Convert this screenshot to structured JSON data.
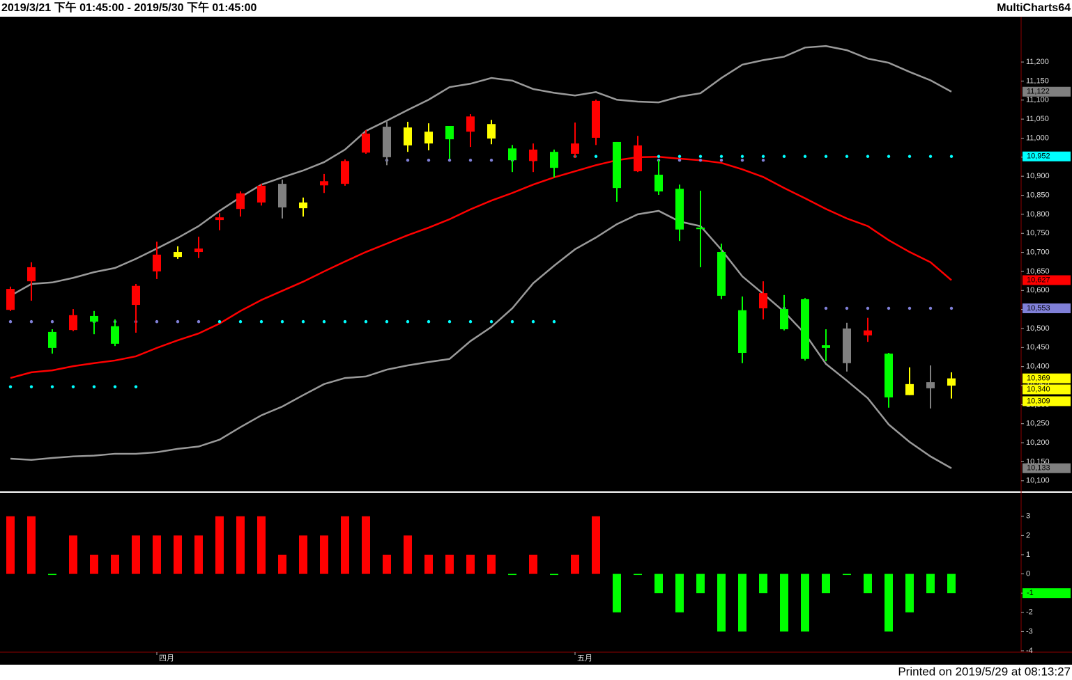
{
  "header": {
    "range": "2019/3/21 下午 01:45:00 - 2019/5/30 下午 01:45:00",
    "app": "MultiCharts64"
  },
  "footer": "Printed on 2019/5/29 at 08:13:27",
  "chart_data": [
    {
      "type": "candlestick",
      "categories": [
        null,
        null,
        null,
        null,
        null,
        null,
        null,
        "四月",
        null,
        null,
        null,
        null,
        null,
        null,
        null,
        null,
        null,
        null,
        null,
        null,
        null,
        null,
        null,
        null,
        null,
        null,
        null,
        "五月",
        null,
        null,
        null,
        null,
        null,
        null,
        null,
        null,
        null,
        null,
        null,
        null,
        null,
        null,
        null,
        null,
        null,
        null
      ],
      "open": [
        10549,
        10624,
        10491,
        10496,
        10533,
        10506,
        10562,
        10650,
        10688,
        10701,
        10785,
        10814,
        10831,
        10818,
        10816,
        10876,
        10880,
        10962,
        10950,
        10981,
        10986,
        11032,
        11017,
        10999,
        10973,
        10940,
        10964,
        10959,
        11001,
        10990,
        10913,
        10904,
        10867,
        10765,
        10701,
        10548,
        10553,
        10551,
        10577,
        10456,
        10409,
        10482,
        10434,
        10325,
        10343,
        10350
      ],
      "high": [
        10610,
        10674,
        10498,
        10551,
        10546,
        10524,
        10617,
        10728,
        10716,
        10741,
        10803,
        10860,
        10880,
        10891,
        10844,
        10906,
        10944,
        11021,
        11046,
        11043,
        11039,
        11032,
        11063,
        11048,
        10982,
        10986,
        10970,
        11041,
        11101,
        10990,
        11006,
        10942,
        10878,
        10862,
        10723,
        10584,
        10624,
        10588,
        10580,
        10498,
        10515,
        10528,
        10436,
        10398,
        10403,
        10385
      ],
      "low": [
        10546,
        10573,
        10434,
        10493,
        10485,
        10454,
        10489,
        10630,
        10683,
        10685,
        10758,
        10794,
        10823,
        10789,
        10794,
        10856,
        10875,
        10959,
        10929,
        10964,
        10968,
        10946,
        10977,
        10984,
        10911,
        10911,
        10897,
        10948,
        10982,
        10833,
        10911,
        10851,
        10730,
        10661,
        10577,
        10409,
        10524,
        10495,
        10416,
        10414,
        10387,
        10465,
        10292,
        10325,
        10290,
        10316
      ],
      "close": [
        10604,
        10661,
        10449,
        10535,
        10518,
        10460,
        10612,
        10694,
        10701,
        10710,
        10792,
        10855,
        10875,
        10880,
        10831,
        10887,
        10940,
        11012,
        11030,
        11028,
        11017,
        10997,
        11057,
        11037,
        10942,
        10970,
        10922,
        10986,
        11098,
        10869,
        10981,
        10860,
        10760,
        10761,
        10586,
        10436,
        10593,
        10498,
        10420,
        10449,
        10500,
        10495,
        10319,
        10354,
        10359,
        10369
      ],
      "colors": [
        "#ff0000",
        "#ff0000",
        "#00ff00",
        "#ff0000",
        "#00ff00",
        "#00ff00",
        "#ff0000",
        "#ff0000",
        "#ffff00",
        "#ff0000",
        "#ff0000",
        "#ff0000",
        "#ff0000",
        "#808080",
        "#ffff00",
        "#ff0000",
        "#ff0000",
        "#ff0000",
        "#808080",
        "#ffff00",
        "#ffff00",
        "#00ff00",
        "#ff0000",
        "#ffff00",
        "#00ff00",
        "#ff0000",
        "#00ff00",
        "#ff0000",
        "#ff0000",
        "#00ff00",
        "#ff0000",
        "#00ff00",
        "#00ff00",
        "#00ff00",
        "#00ff00",
        "#00ff00",
        "#ff0000",
        "#00ff00",
        "#00ff00",
        "#00ff00",
        "#808080",
        "#ff0000",
        "#00ff00",
        "#ffff00",
        "#808080",
        "#ffff00"
      ],
      "lines": [
        {
          "color": "#9a9a9a",
          "values": [
            10586,
            10617,
            10621,
            10633,
            10648,
            10659,
            10683,
            10710,
            10738,
            10769,
            10809,
            10845,
            10878,
            10897,
            10915,
            10937,
            10970,
            11019,
            11046,
            11074,
            11101,
            11134,
            11143,
            11158,
            11151,
            11129,
            11119,
            11112,
            11121,
            11101,
            11096,
            11094,
            11109,
            11118,
            11158,
            11193,
            11205,
            11214,
            11238,
            11242,
            11231,
            11209,
            11198,
            11174,
            11152,
            11122
          ]
        },
        {
          "color": "#ff0000",
          "values": [
            10370,
            10385,
            10390,
            10401,
            10409,
            10416,
            10427,
            10449,
            10469,
            10487,
            10513,
            10546,
            10575,
            10599,
            10623,
            10650,
            10676,
            10701,
            10723,
            10745,
            10765,
            10787,
            10813,
            10836,
            10856,
            10878,
            10897,
            10913,
            10929,
            10942,
            10950,
            10951,
            10946,
            10942,
            10935,
            10918,
            10898,
            10869,
            10842,
            10814,
            10789,
            10769,
            10732,
            10701,
            10674,
            10627
          ]
        },
        {
          "color": "#9a9a9a",
          "values": [
            10158,
            10155,
            10160,
            10164,
            10166,
            10171,
            10171,
            10175,
            10184,
            10190,
            10208,
            10241,
            10272,
            10295,
            10325,
            10354,
            10370,
            10374,
            10392,
            10403,
            10412,
            10420,
            10467,
            10504,
            10553,
            10619,
            10665,
            10708,
            10739,
            10774,
            10800,
            10809,
            10781,
            10769,
            10707,
            10637,
            10591,
            10544,
            10486,
            10407,
            10363,
            10317,
            10248,
            10202,
            10164,
            10133
          ]
        }
      ],
      "dots": [
        {
          "color": "#00ffff",
          "values": [
            10347,
            10347,
            10347,
            10347,
            10347,
            10347,
            10347,
            null,
            null,
            null,
            10518,
            10518,
            10518,
            10518,
            10518,
            10518,
            10518,
            10518,
            10518,
            10518,
            10518,
            10518,
            10518,
            10518,
            10518,
            10518,
            10518,
            10952,
            10952,
            10952,
            10952,
            10952,
            10952,
            10952,
            10952,
            10952,
            10952,
            10952,
            10952,
            10952,
            10952,
            10952,
            10952,
            10952,
            10952,
            10952
          ]
        },
        {
          "color": "#8080d8",
          "values": [
            10518,
            10518,
            10518,
            10518,
            10518,
            10518,
            10518,
            10518,
            10518,
            10518,
            null,
            null,
            null,
            null,
            null,
            null,
            null,
            null,
            10942,
            10942,
            10942,
            10942,
            10942,
            10942,
            10942,
            10942,
            10942,
            null,
            null,
            null,
            10942,
            10942,
            10942,
            10942,
            10942,
            10942,
            10942,
            10553,
            10553,
            10553,
            10553,
            10553,
            10553,
            10553,
            10553,
            10553
          ]
        }
      ],
      "ylim": [
        10074,
        11319
      ],
      "yticks": [
        {
          "value": 10100,
          "label": "10,100"
        },
        {
          "value": 10150,
          "label": "10,150"
        },
        {
          "value": 10200,
          "label": "10,200"
        },
        {
          "value": 10250,
          "label": "10,250"
        },
        {
          "value": 10300,
          "label": "10,300"
        },
        {
          "value": 10350,
          "label": "10,350"
        },
        {
          "value": 10400,
          "label": "10,400"
        },
        {
          "value": 10450,
          "label": "10,450"
        },
        {
          "value": 10500,
          "label": "10,500"
        },
        {
          "value": 10550,
          "label": "10,550"
        },
        {
          "value": 10600,
          "label": "10,600"
        },
        {
          "value": 10650,
          "label": "10,650"
        },
        {
          "value": 10700,
          "label": "10,700"
        },
        {
          "value": 10750,
          "label": "10,750"
        },
        {
          "value": 10800,
          "label": "10,800"
        },
        {
          "value": 10850,
          "label": "10,850"
        },
        {
          "value": 10900,
          "label": "10,900"
        },
        {
          "value": 10950,
          "label": "10,950"
        },
        {
          "value": 11000,
          "label": "11,000"
        },
        {
          "value": 11050,
          "label": "11,050"
        },
        {
          "value": 11100,
          "label": "11,100"
        },
        {
          "value": 11150,
          "label": "11,150"
        },
        {
          "value": 11200,
          "label": "11,200"
        }
      ],
      "markers": [
        {
          "value": 11122,
          "label": "11,122",
          "color": "#808080"
        },
        {
          "value": 10952,
          "label": "10,952",
          "color": "#00ffff"
        },
        {
          "value": 10627,
          "label": "10,627",
          "color": "#ff0000"
        },
        {
          "value": 10553,
          "label": "10,553",
          "color": "#8080d8"
        },
        {
          "value": 10369,
          "label": "10,369",
          "color": "#ffff00"
        },
        {
          "value": 10340,
          "label": "10,340",
          "color": "#ffff00"
        },
        {
          "value": 10309,
          "label": "10,309",
          "color": "#ffff00"
        },
        {
          "value": 10133,
          "label": "10,133",
          "color": "#808080"
        }
      ]
    },
    {
      "type": "bar",
      "values": [
        3,
        3,
        0,
        2,
        1,
        1,
        2,
        2,
        2,
        2,
        3,
        3,
        3,
        1,
        2,
        2,
        3,
        3,
        1,
        2,
        1,
        1,
        1,
        1,
        0,
        1,
        0,
        1,
        3,
        -2,
        0,
        -1,
        -2,
        -1,
        -3,
        -3,
        -1,
        -3,
        -3,
        -1,
        0,
        -1,
        -3,
        -2,
        -1,
        -1
      ],
      "up_color": "#ff0000",
      "down_color": "#00ff00",
      "ylim": [
        -4,
        4.15
      ],
      "yticks": [
        3,
        2,
        1,
        0,
        -1,
        -2,
        -3,
        -4
      ],
      "markers": [
        {
          "value": -1,
          "label": "-1",
          "color": "#00ff00"
        }
      ]
    }
  ]
}
